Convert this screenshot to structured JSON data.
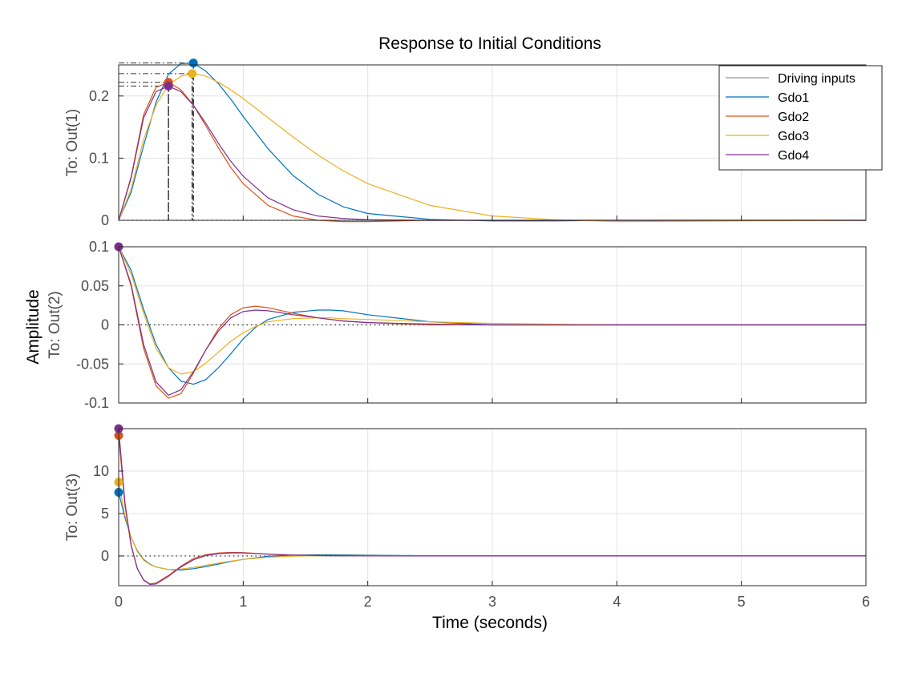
{
  "chart_data": {
    "type": "line",
    "title": "Response to Initial Conditions",
    "xlabel": "Time (seconds)",
    "ylabel": "Amplitude",
    "xlim": [
      0,
      6
    ],
    "xticks": [
      0,
      1,
      2,
      3,
      4,
      5,
      6
    ],
    "grid": true,
    "legend": {
      "placement": "top-right",
      "entries": [
        "Driving inputs",
        "Gdo1",
        "Gdo2",
        "Gdo3",
        "Gdo4"
      ]
    },
    "colors": {
      "Driving inputs": "#bdbdbd",
      "Gdo1": "#0072BD",
      "Gdo2": "#D95319",
      "Gdo3": "#EDB120",
      "Gdo4": "#7E2F8E"
    },
    "subplots": [
      {
        "ylabel": "To: Out(1)",
        "ylim": [
          0,
          0.25
        ],
        "yticks": [
          0,
          0.1,
          0.2
        ],
        "x": [
          0,
          0.1,
          0.2,
          0.3,
          0.4,
          0.5,
          0.6,
          0.7,
          0.8,
          0.9,
          1.0,
          1.2,
          1.4,
          1.6,
          1.8,
          2.0,
          2.5,
          3.0,
          3.5,
          4.0,
          5.0,
          6.0
        ],
        "series": [
          {
            "name": "Gdo1",
            "values": [
              0,
              0.045,
              0.12,
              0.19,
              0.235,
              0.252,
              0.253,
              0.24,
              0.22,
              0.195,
              0.167,
              0.115,
              0.072,
              0.042,
              0.022,
              0.011,
              0.0015,
              -0.001,
              -0.001,
              0,
              0,
              0
            ]
          },
          {
            "name": "Gdo2",
            "values": [
              0,
              0.07,
              0.17,
              0.214,
              0.222,
              0.21,
              0.185,
              0.152,
              0.117,
              0.085,
              0.059,
              0.024,
              0.007,
              0.0,
              -0.002,
              -0.002,
              0,
              0,
              0,
              0,
              0,
              0
            ]
          },
          {
            "name": "Gdo3",
            "values": [
              0,
              0.05,
              0.13,
              0.185,
              0.218,
              0.232,
              0.236,
              0.232,
              0.222,
              0.21,
              0.196,
              0.165,
              0.134,
              0.105,
              0.08,
              0.059,
              0.024,
              0.007,
              0.001,
              -0.002,
              -0.001,
              0
            ]
          },
          {
            "name": "Gdo4",
            "values": [
              0,
              0.068,
              0.165,
              0.207,
              0.216,
              0.207,
              0.185,
              0.156,
              0.124,
              0.095,
              0.071,
              0.036,
              0.017,
              0.007,
              0.003,
              0.001,
              0,
              0,
              0,
              0,
              0,
              0
            ]
          }
        ],
        "peaks": [
          {
            "series": "Gdo1",
            "x": 0.6,
            "y": 0.253
          },
          {
            "series": "Gdo2",
            "x": 0.4,
            "y": 0.222
          },
          {
            "series": "Gdo3",
            "x": 0.59,
            "y": 0.236
          },
          {
            "series": "Gdo4",
            "x": 0.4,
            "y": 0.216
          }
        ]
      },
      {
        "ylabel": "To: Out(2)",
        "ylim": [
          -0.1,
          0.1
        ],
        "yticks": [
          -0.1,
          -0.05,
          0,
          0.05,
          0.1
        ],
        "yticklabels": [
          "-0.1",
          "-0.05",
          "0",
          "0.05",
          "0.1"
        ],
        "x": [
          0,
          0.1,
          0.2,
          0.3,
          0.4,
          0.5,
          0.6,
          0.7,
          0.8,
          0.9,
          1.0,
          1.1,
          1.2,
          1.4,
          1.6,
          1.7,
          1.8,
          2.0,
          2.5,
          3.0,
          4.0,
          5.0,
          6.0
        ],
        "series": [
          {
            "name": "Gdo1",
            "values": [
              0.1,
              0.07,
              0.02,
              -0.025,
              -0.055,
              -0.072,
              -0.076,
              -0.07,
              -0.055,
              -0.037,
              -0.018,
              -0.003,
              0.007,
              0.016,
              0.019,
              0.019,
              0.018,
              0.013,
              0.004,
              0.0,
              0,
              0,
              0
            ]
          },
          {
            "name": "Gdo2",
            "values": [
              0.1,
              0.05,
              -0.03,
              -0.078,
              -0.094,
              -0.088,
              -0.062,
              -0.032,
              -0.005,
              0.013,
              0.022,
              0.024,
              0.022,
              0.015,
              0.009,
              0.007,
              0.005,
              0.003,
              0.0,
              0,
              0,
              0,
              0
            ]
          },
          {
            "name": "Gdo3",
            "values": [
              0.1,
              0.065,
              0.015,
              -0.03,
              -0.055,
              -0.063,
              -0.06,
              -0.049,
              -0.035,
              -0.021,
              -0.01,
              -0.002,
              0.004,
              0.008,
              0.009,
              0.009,
              0.008,
              0.007,
              0.004,
              0.002,
              0.0,
              0,
              0
            ]
          },
          {
            "name": "Gdo4",
            "values": [
              0.1,
              0.052,
              -0.025,
              -0.073,
              -0.09,
              -0.083,
              -0.06,
              -0.032,
              -0.008,
              0.009,
              0.017,
              0.019,
              0.018,
              0.013,
              0.009,
              0.007,
              0.005,
              0.003,
              0.001,
              0,
              0,
              0,
              0
            ]
          }
        ],
        "peaks": [
          {
            "series": "Gdo4",
            "x": 0,
            "y": 0.1
          }
        ]
      },
      {
        "ylabel": "To: Out(3)",
        "ylim": [
          -3.5,
          15
        ],
        "yticks": [
          0,
          5,
          10
        ],
        "x": [
          0,
          0.05,
          0.1,
          0.15,
          0.2,
          0.25,
          0.3,
          0.4,
          0.5,
          0.6,
          0.7,
          0.8,
          0.9,
          1.0,
          1.2,
          1.4,
          1.7,
          2.0,
          2.5,
          3.0,
          4.0,
          6.0
        ],
        "series": [
          {
            "name": "Gdo1",
            "values": [
              7.5,
              4.5,
              2.2,
              0.6,
              -0.4,
              -0.95,
              -1.3,
              -1.6,
              -1.65,
              -1.5,
              -1.25,
              -0.95,
              -0.65,
              -0.4,
              -0.05,
              0.1,
              0.15,
              0.1,
              0.02,
              0,
              0,
              0
            ]
          },
          {
            "name": "Gdo2",
            "values": [
              14.2,
              6.0,
              1.2,
              -1.5,
              -2.8,
              -3.3,
              -3.2,
              -2.3,
              -1.2,
              -0.3,
              0.15,
              0.35,
              0.42,
              0.4,
              0.22,
              0.1,
              0.03,
              0.01,
              0,
              0,
              0,
              0
            ]
          },
          {
            "name": "Gdo3",
            "values": [
              8.7,
              4.8,
              2.2,
              0.5,
              -0.5,
              -1.0,
              -1.3,
              -1.6,
              -1.55,
              -1.35,
              -1.1,
              -0.85,
              -0.6,
              -0.4,
              -0.15,
              -0.02,
              0.05,
              0.05,
              0.02,
              0,
              0,
              0
            ]
          },
          {
            "name": "Gdo4",
            "values": [
              15.0,
              6.3,
              1.3,
              -1.5,
              -2.85,
              -3.35,
              -3.3,
              -2.4,
              -1.3,
              -0.45,
              0.05,
              0.28,
              0.36,
              0.35,
              0.22,
              0.1,
              0.03,
              0.01,
              0,
              0,
              0,
              0
            ]
          }
        ],
        "peaks": [
          {
            "series": "Gdo1",
            "x": 0,
            "y": 7.5
          },
          {
            "series": "Gdo2",
            "x": 0,
            "y": 14.2
          },
          {
            "series": "Gdo3",
            "x": 0,
            "y": 8.7
          },
          {
            "series": "Gdo4",
            "x": 0,
            "y": 15.0
          }
        ]
      }
    ]
  }
}
